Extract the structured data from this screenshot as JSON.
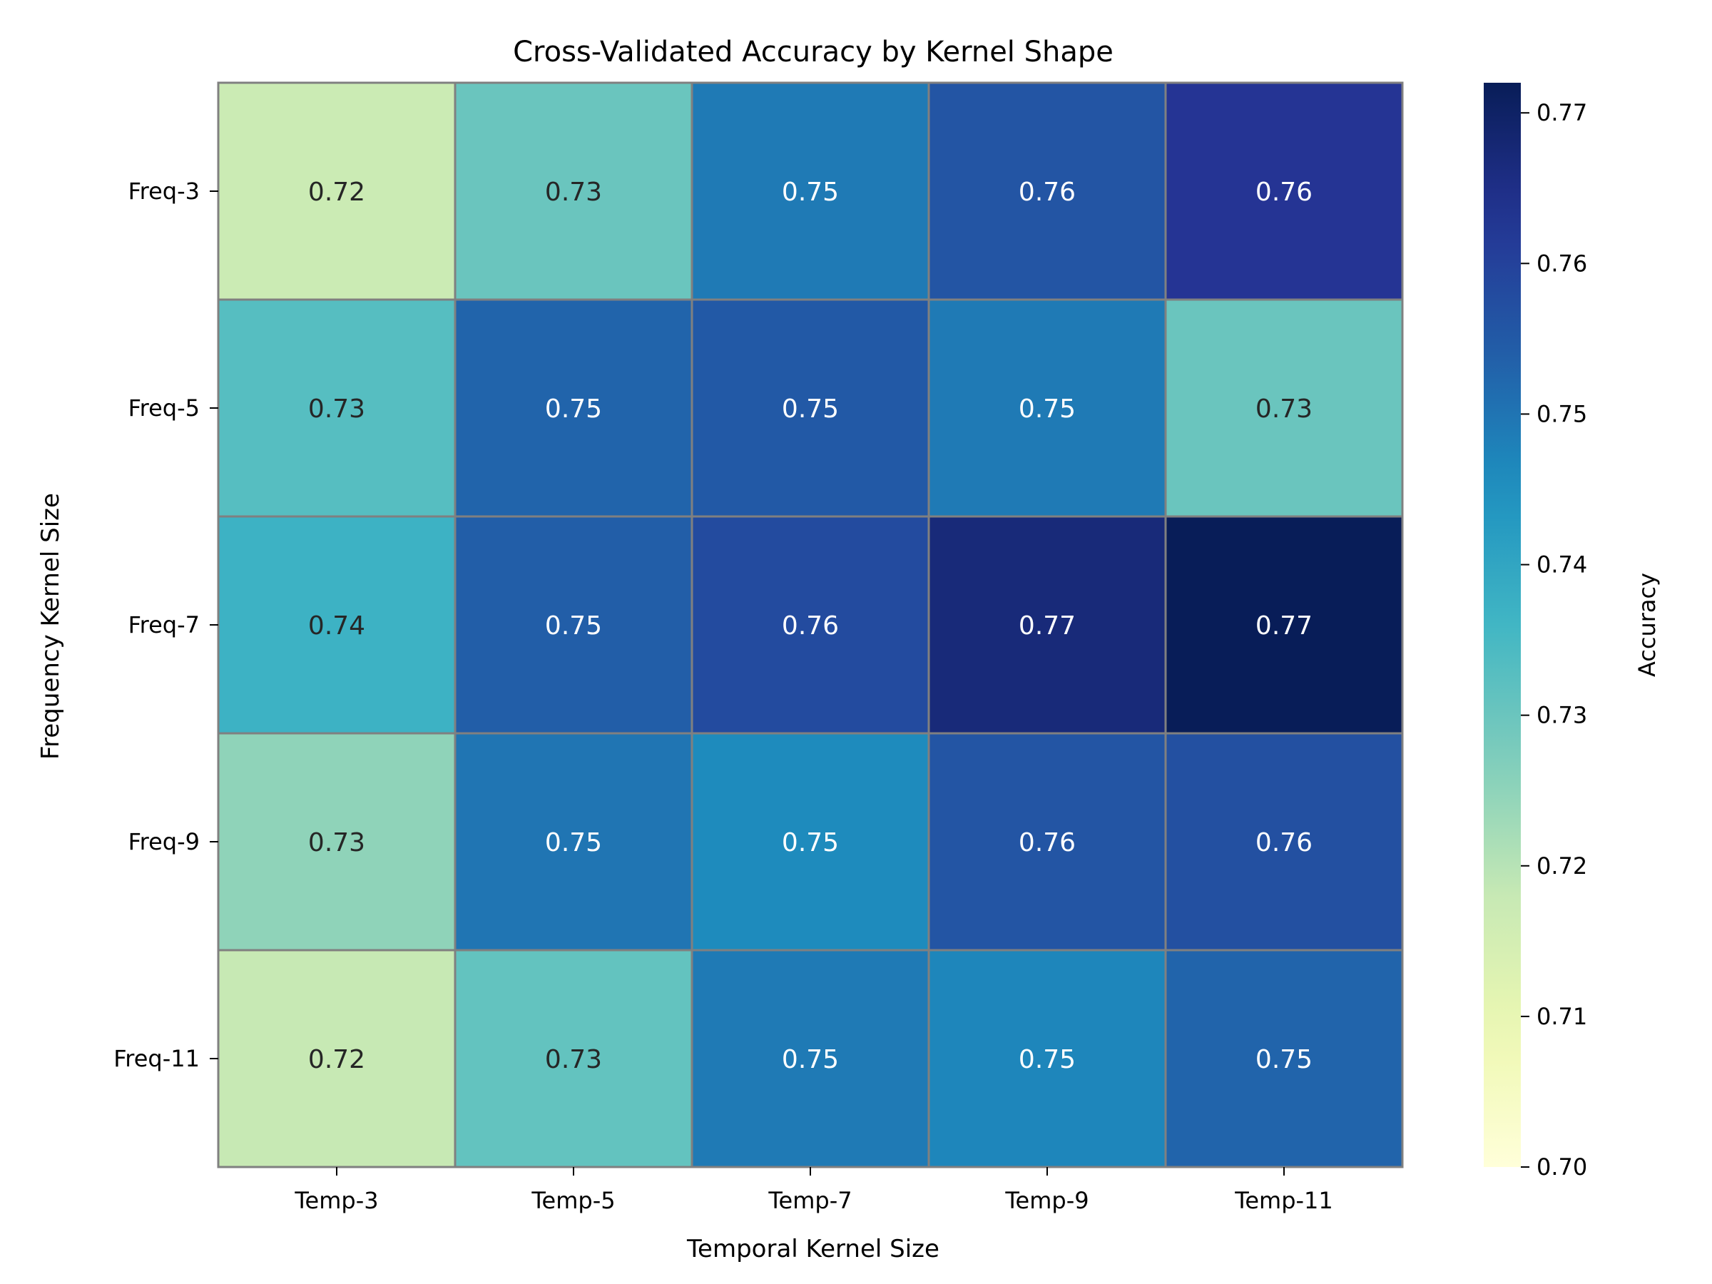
{
  "chart_data": {
    "type": "heatmap",
    "title": "Cross-Validated Accuracy by Kernel Shape",
    "xlabel": "Temporal Kernel Size",
    "ylabel": "Frequency Kernel Size",
    "x_categories": [
      "Temp-3",
      "Temp-5",
      "Temp-7",
      "Temp-9",
      "Temp-11"
    ],
    "y_categories": [
      "Freq-3",
      "Freq-5",
      "Freq-7",
      "Freq-9",
      "Freq-11"
    ],
    "values": [
      [
        0.717,
        0.73,
        0.749,
        0.756,
        0.763
      ],
      [
        0.733,
        0.753,
        0.755,
        0.749,
        0.73
      ],
      [
        0.737,
        0.754,
        0.758,
        0.767,
        0.772
      ],
      [
        0.725,
        0.75,
        0.746,
        0.756,
        0.757
      ],
      [
        0.718,
        0.731,
        0.749,
        0.747,
        0.753
      ]
    ],
    "cell_labels": [
      [
        "0.72",
        "0.73",
        "0.75",
        "0.76",
        "0.76"
      ],
      [
        "0.73",
        "0.75",
        "0.75",
        "0.75",
        "0.73"
      ],
      [
        "0.74",
        "0.75",
        "0.76",
        "0.77",
        "0.77"
      ],
      [
        "0.73",
        "0.75",
        "0.75",
        "0.76",
        "0.76"
      ],
      [
        "0.72",
        "0.73",
        "0.75",
        "0.75",
        "0.75"
      ]
    ],
    "colorbar": {
      "label": "Accuracy",
      "vmin": 0.7,
      "vmax": 0.772,
      "ticks": [
        0.7,
        0.71,
        0.72,
        0.73,
        0.74,
        0.75,
        0.76,
        0.77
      ],
      "tick_labels": [
        "0.70",
        "0.71",
        "0.72",
        "0.73",
        "0.74",
        "0.75",
        "0.76",
        "0.77"
      ],
      "colormap": "YlGnBu"
    },
    "colors": {
      "cell_border": "#808080",
      "text_dark": "#262626",
      "text_light": "#ffffff"
    },
    "grid": false,
    "legend": "colorbar-right"
  }
}
